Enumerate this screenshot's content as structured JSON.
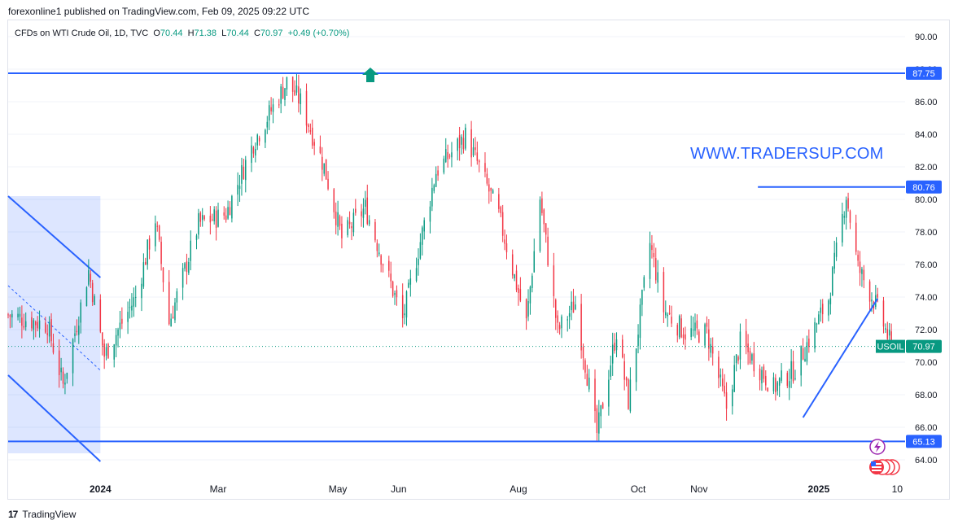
{
  "header": {
    "published_line": "forexonline1 published on TradingView.com, Feb 09, 2025 09:22 UTC"
  },
  "legend": {
    "symbol": "CFDs on WTI Crude Oil, 1D, TVC",
    "o_label": "O",
    "o_value": "70.44",
    "h_label": "H",
    "h_value": "71.38",
    "l_label": "L",
    "l_value": "70.44",
    "c_label": "C",
    "c_value": "70.97",
    "change": "+0.49 (+0.70%)"
  },
  "watermark": "WWW.TRADERSUP.COM",
  "footer": {
    "logo_text": "TradingView"
  },
  "colors": {
    "up": "#089981",
    "down": "#f23645",
    "level_line": "#2962ff",
    "price_tag": "#089981",
    "channel_fill": "#2962ff"
  },
  "chart_data": {
    "type": "candlestick",
    "symbol_tag": "USOIL",
    "last_price": "70.97",
    "price_axis": {
      "ticks": [
        "90.00",
        "88.00",
        "86.00",
        "84.00",
        "82.00",
        "80.00",
        "78.00",
        "76.00",
        "74.00",
        "72.00",
        "70.00",
        "68.00",
        "66.00",
        "64.00"
      ],
      "range": [
        63.0,
        91.0
      ]
    },
    "time_axis": {
      "labels": [
        "2024",
        "Mar",
        "May",
        "Jun",
        "Aug",
        "Oct",
        "Nov",
        "2025",
        "10"
      ],
      "bold": [
        "2024",
        "2025"
      ]
    },
    "levels": [
      {
        "name": "resistance-top",
        "price": 87.75,
        "label": "87.75",
        "from": "2023-11-15",
        "to": "2025-02-14"
      },
      {
        "name": "resistance-recent",
        "price": 80.76,
        "label": "80.76",
        "from": "2024-12-01",
        "to": "2025-02-14"
      },
      {
        "name": "support",
        "price": 65.13,
        "label": "65.13",
        "from": "2023-11-15",
        "to": "2025-02-14"
      }
    ],
    "trendline": {
      "from": [
        "2024-12-24",
        66.6
      ],
      "to": [
        "2025-01-31",
        73.9
      ]
    },
    "channel": {
      "upper": [
        [
          "2023-11-15",
          80.2
        ],
        [
          "2024-01-01",
          75.2
        ]
      ],
      "lower": [
        [
          "2023-11-15",
          69.2
        ],
        [
          "2024-01-01",
          63.9
        ]
      ],
      "mid": [
        [
          "2023-11-15",
          74.7
        ],
        [
          "2024-01-01",
          69.5
        ]
      ]
    },
    "anchors": [
      [
        "2023-11-15",
        72.9
      ],
      [
        "2023-12-05",
        72.3
      ],
      [
        "2023-12-13",
        68.6
      ],
      [
        "2023-12-26",
        75.6
      ],
      [
        "2024-01-03",
        70.4
      ],
      [
        "2024-01-19",
        74.0
      ],
      [
        "2024-01-29",
        78.8
      ],
      [
        "2024-02-05",
        72.4
      ],
      [
        "2024-02-20",
        78.5
      ],
      [
        "2024-03-05",
        79.1
      ],
      [
        "2024-03-19",
        83.5
      ],
      [
        "2024-04-05",
        87.2
      ],
      [
        "2024-04-12",
        86.0
      ],
      [
        "2024-04-24",
        82.0
      ],
      [
        "2024-05-03",
        77.6
      ],
      [
        "2024-05-15",
        79.5
      ],
      [
        "2024-06-03",
        72.6
      ],
      [
        "2024-06-20",
        81.7
      ],
      [
        "2024-07-05",
        83.9
      ],
      [
        "2024-07-12",
        82.0
      ],
      [
        "2024-07-22",
        79.0
      ],
      [
        "2024-08-05",
        72.4
      ],
      [
        "2024-08-12",
        80.1
      ],
      [
        "2024-08-21",
        71.9
      ],
      [
        "2024-08-30",
        73.6
      ],
      [
        "2024-09-10",
        65.6
      ],
      [
        "2024-09-20",
        71.9
      ],
      [
        "2024-09-26",
        67.6
      ],
      [
        "2024-10-07",
        77.3
      ],
      [
        "2024-10-14",
        73.2
      ],
      [
        "2024-10-25",
        71.8
      ],
      [
        "2024-11-05",
        71.8
      ],
      [
        "2024-11-15",
        67.2
      ],
      [
        "2024-11-22",
        71.2
      ],
      [
        "2024-12-09",
        68.4
      ],
      [
        "2024-12-20",
        69.6
      ],
      [
        "2025-01-06",
        73.9
      ],
      [
        "2025-01-15",
        80.3
      ],
      [
        "2025-01-21",
        75.8
      ],
      [
        "2025-01-31",
        73.3
      ],
      [
        "2025-02-07",
        70.97
      ]
    ]
  }
}
